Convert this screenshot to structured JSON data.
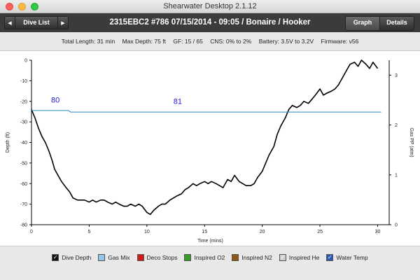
{
  "window": {
    "title": "Shearwater Desktop 2.1.12"
  },
  "toolbar": {
    "nav_back_glyph": "◀",
    "nav_forward_glyph": "▶",
    "nav_label": "Dive List",
    "dive_title": "2315EBC2 #786 07/15/2014 - 09:05  / Bonaire / Hooker",
    "tabs": [
      {
        "label": "Graph",
        "active": true
      },
      {
        "label": "Details",
        "active": false
      }
    ]
  },
  "info": {
    "total_length": "Total Length: 31 min",
    "max_depth": "Max Depth: 75 ft",
    "gf": "GF: 15 / 65",
    "cns": "CNS: 0% to 2%",
    "battery": "Battery: 3.5V to 3.2V",
    "firmware": "Firmware: v56"
  },
  "legend": {
    "items": [
      {
        "label": "Dive Depth",
        "checked": true,
        "color": "#111111"
      },
      {
        "label": "Gas Mix",
        "checked": false,
        "color": "#8fc6ea"
      },
      {
        "label": "Deco Stops",
        "checked": false,
        "color": "#d0191b"
      },
      {
        "label": "Inspired O2",
        "checked": false,
        "color": "#3a9a2a"
      },
      {
        "label": "Inspired N2",
        "checked": false,
        "color": "#8a5a12"
      },
      {
        "label": "Inspired He",
        "checked": true,
        "color": "#cfcfcf"
      },
      {
        "label": "Water Temp",
        "checked": true,
        "color": "#2a56b6"
      }
    ]
  },
  "chart_data": {
    "type": "line",
    "xlabel": "Time (mins)",
    "ylabel": "Depth (ft)",
    "y2label": "Gas PP (atm)",
    "xlim": [
      0,
      31
    ],
    "ylim": [
      -80,
      0
    ],
    "y2lim": [
      0,
      3.3
    ],
    "x_ticks": [
      "0",
      "5",
      "10",
      "15",
      "20",
      "25",
      "30"
    ],
    "y_ticks": [
      "0",
      "-10",
      "-20",
      "-30",
      "-40",
      "-50",
      "-60",
      "-70",
      "-80"
    ],
    "y2_ticks": [
      "0",
      "1",
      "2",
      "3"
    ],
    "grid": false,
    "series": [
      {
        "kind": "depth",
        "color": "#000000",
        "x": [
          0,
          0.3,
          0.6,
          0.9,
          1.2,
          1.5,
          1.8,
          2.0,
          2.3,
          2.6,
          3.0,
          3.3,
          3.6,
          4.0,
          4.3,
          4.6,
          5.0,
          5.3,
          5.6,
          6.0,
          6.3,
          6.6,
          7.0,
          7.3,
          7.6,
          8.0,
          8.3,
          8.6,
          9.0,
          9.3,
          9.6,
          10.0,
          10.3,
          10.6,
          11.0,
          11.3,
          11.6,
          12.0,
          12.3,
          12.6,
          13.0,
          13.3,
          13.6,
          14.0,
          14.3,
          14.6,
          15.0,
          15.3,
          15.6,
          16.0,
          16.3,
          16.6,
          17.0,
          17.3,
          17.6,
          18.0,
          18.3,
          18.6,
          19.0,
          19.3,
          19.6,
          20.0,
          20.3,
          20.6,
          21.0,
          21.3,
          21.6,
          22.0,
          22.3,
          22.6,
          23.0,
          23.3,
          23.6,
          24.0,
          24.3,
          24.6,
          25.0,
          25.3,
          25.6,
          26.0,
          26.3,
          26.6,
          27.0,
          27.3,
          27.6,
          28.0,
          28.3,
          28.6,
          29.0,
          29.3,
          29.6,
          30.0
        ],
        "y": [
          -24,
          -28,
          -33,
          -37,
          -40,
          -44,
          -49,
          -53,
          -56,
          -59,
          -62,
          -64,
          -67,
          -68,
          -68,
          -68,
          -69,
          -68,
          -69,
          -68,
          -68,
          -69,
          -70,
          -69,
          -70,
          -71,
          -71,
          -70,
          -71,
          -70,
          -71,
          -74,
          -75,
          -73,
          -71,
          -70,
          -70,
          -68,
          -67,
          -66,
          -65,
          -63,
          -62,
          -60,
          -61,
          -60,
          -59,
          -60,
          -59,
          -60,
          -61,
          -62,
          -58,
          -59,
          -56,
          -59,
          -60,
          -61,
          -61,
          -60,
          -57,
          -54,
          -50,
          -46,
          -42,
          -36,
          -32,
          -28,
          -24,
          -22,
          -23,
          -22,
          -20,
          -21,
          -19,
          -17,
          -14,
          -17,
          -16,
          -15,
          -14,
          -12,
          -8,
          -5,
          -2,
          -1,
          -3,
          0,
          -2,
          -4,
          -1,
          -4
        ]
      },
      {
        "kind": "water_temp",
        "color": "#2a86c6",
        "axis": "y2",
        "x": [
          0,
          3.2,
          3.4,
          30.3
        ],
        "y": [
          2.29,
          2.29,
          2.26,
          2.26
        ]
      }
    ],
    "annotations": [
      {
        "text": "80",
        "x": 1.7,
        "y": 2.45,
        "color": "#1a1ad6"
      },
      {
        "text": "81",
        "x": 12.3,
        "y": 2.42,
        "color": "#1a1ad6"
      }
    ]
  }
}
